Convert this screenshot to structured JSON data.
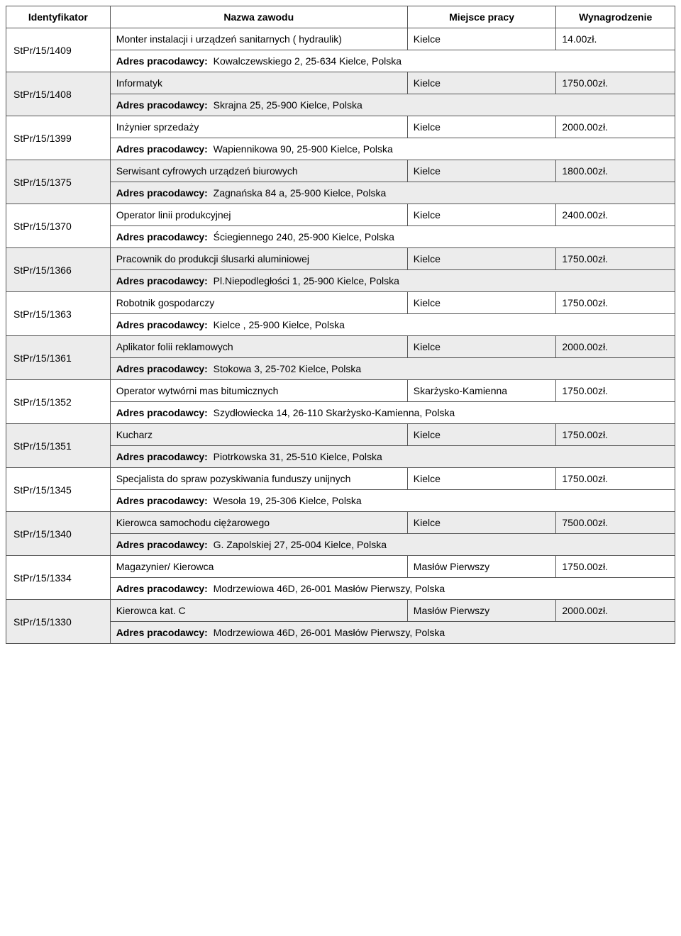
{
  "table": {
    "headers": {
      "id": "Identyfikator",
      "job": "Nazwa zawodu",
      "place": "Miejsce pracy",
      "salary": "Wynagrodzenie"
    },
    "address_label": "Adres pracodawcy:",
    "rows": [
      {
        "id": "StPr/15/1409",
        "job": "Monter instalacji i urządzeń sanitarnych ( hydraulik)",
        "place": "Kielce",
        "salary": "14.00zł.",
        "address": "Kowalczewskiego 2, 25-634 Kielce, Polska",
        "shade": false
      },
      {
        "id": "StPr/15/1408",
        "job": "Informatyk",
        "place": "Kielce",
        "salary": "1750.00zł.",
        "address": "Skrajna 25, 25-900 Kielce, Polska",
        "shade": true
      },
      {
        "id": "StPr/15/1399",
        "job": "Inżynier sprzedaży",
        "place": "Kielce",
        "salary": "2000.00zł.",
        "address": "Wapiennikowa 90, 25-900 Kielce, Polska",
        "shade": false
      },
      {
        "id": "StPr/15/1375",
        "job": "Serwisant cyfrowych urządzeń biurowych",
        "place": "Kielce",
        "salary": "1800.00zł.",
        "address": "Zagnańska 84 a, 25-900 Kielce, Polska",
        "shade": true
      },
      {
        "id": "StPr/15/1370",
        "job": "Operator linii produkcyjnej",
        "place": "Kielce",
        "salary": "2400.00zł.",
        "address": "Ściegiennego 240, 25-900 Kielce, Polska",
        "shade": false
      },
      {
        "id": "StPr/15/1366",
        "job": "Pracownik do produkcji ślusarki aluminiowej",
        "place": "Kielce",
        "salary": "1750.00zł.",
        "address": "Pl.Niepodległości 1, 25-900 Kielce, Polska",
        "shade": true
      },
      {
        "id": "StPr/15/1363",
        "job": "Robotnik gospodarczy",
        "place": "Kielce",
        "salary": "1750.00zł.",
        "address": "Kielce , 25-900 Kielce, Polska",
        "shade": false
      },
      {
        "id": "StPr/15/1361",
        "job": "Aplikator folii reklamowych",
        "place": "Kielce",
        "salary": "2000.00zł.",
        "address": "Stokowa 3, 25-702 Kielce, Polska",
        "shade": true
      },
      {
        "id": "StPr/15/1352",
        "job": "Operator wytwórni mas bitumicznych",
        "place": "Skarżysko-Kamienna",
        "salary": "1750.00zł.",
        "address": "Szydłowiecka 14, 26-110 Skarżysko-Kamienna, Polska",
        "shade": false
      },
      {
        "id": "StPr/15/1351",
        "job": "Kucharz",
        "place": "Kielce",
        "salary": "1750.00zł.",
        "address": "Piotrkowska 31, 25-510 Kielce, Polska",
        "shade": true
      },
      {
        "id": "StPr/15/1345",
        "job": "Specjalista do spraw pozyskiwania funduszy unijnych",
        "place": "Kielce",
        "salary": "1750.00zł.",
        "address": "Wesoła 19, 25-306 Kielce, Polska",
        "shade": false
      },
      {
        "id": "StPr/15/1340",
        "job": "Kierowca samochodu ciężarowego",
        "place": "Kielce",
        "salary": "7500.00zł.",
        "address": "G. Zapolskiej 27, 25-004 Kielce, Polska",
        "shade": true
      },
      {
        "id": "StPr/15/1334",
        "job": "Magazynier/ Kierowca",
        "place": "Masłów Pierwszy",
        "salary": "1750.00zł.",
        "address": "Modrzewiowa 46D, 26-001 Masłów Pierwszy, Polska",
        "shade": false
      },
      {
        "id": "StPr/15/1330",
        "job": "Kierowca kat. C",
        "place": "Masłów Pierwszy",
        "salary": "2000.00zł.",
        "address": "Modrzewiowa 46D, 26-001 Masłów Pierwszy, Polska",
        "shade": true
      }
    ]
  }
}
